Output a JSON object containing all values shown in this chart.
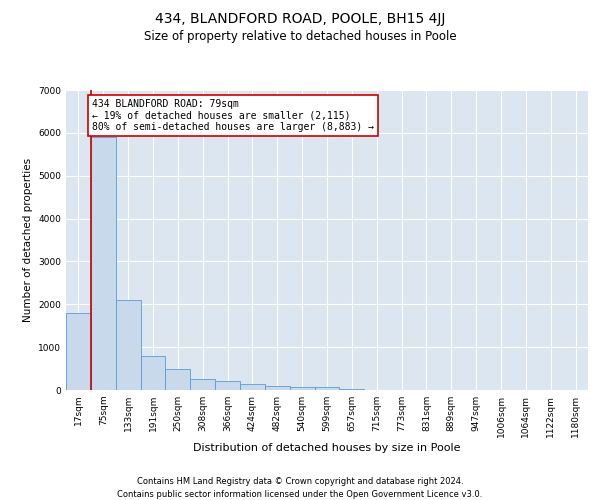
{
  "title_line1": "434, BLANDFORD ROAD, POOLE, BH15 4JJ",
  "title_line2": "Size of property relative to detached houses in Poole",
  "xlabel": "Distribution of detached houses by size in Poole",
  "ylabel": "Number of detached properties",
  "annotation_line1": "434 BLANDFORD ROAD: 79sqm",
  "annotation_line2": "← 19% of detached houses are smaller (2,115)",
  "annotation_line3": "80% of semi-detached houses are larger (8,883) →",
  "footer_line1": "Contains HM Land Registry data © Crown copyright and database right 2024.",
  "footer_line2": "Contains public sector information licensed under the Open Government Licence v3.0.",
  "bin_labels": [
    "17sqm",
    "75sqm",
    "133sqm",
    "191sqm",
    "250sqm",
    "308sqm",
    "366sqm",
    "424sqm",
    "482sqm",
    "540sqm",
    "599sqm",
    "657sqm",
    "715sqm",
    "773sqm",
    "831sqm",
    "889sqm",
    "947sqm",
    "1006sqm",
    "1064sqm",
    "1122sqm",
    "1180sqm"
  ],
  "bar_values": [
    1800,
    5900,
    2100,
    800,
    500,
    250,
    200,
    150,
    100,
    80,
    60,
    20,
    10,
    5,
    3,
    2,
    1,
    1,
    1,
    0,
    0
  ],
  "bar_color": "#c9d9ec",
  "bar_edge_color": "#5b9bd5",
  "fig_bg_color": "#ffffff",
  "plot_bg_color": "#dce6f1",
  "grid_color": "#ffffff",
  "red_color": "#cc0000",
  "ylim": [
    0,
    7000
  ],
  "yticks": [
    0,
    1000,
    2000,
    3000,
    4000,
    5000,
    6000,
    7000
  ],
  "title_fontsize": 10,
  "subtitle_fontsize": 8.5,
  "ylabel_fontsize": 7.5,
  "xlabel_fontsize": 8,
  "tick_fontsize": 6.5,
  "annotation_fontsize": 7,
  "footer_fontsize": 6
}
